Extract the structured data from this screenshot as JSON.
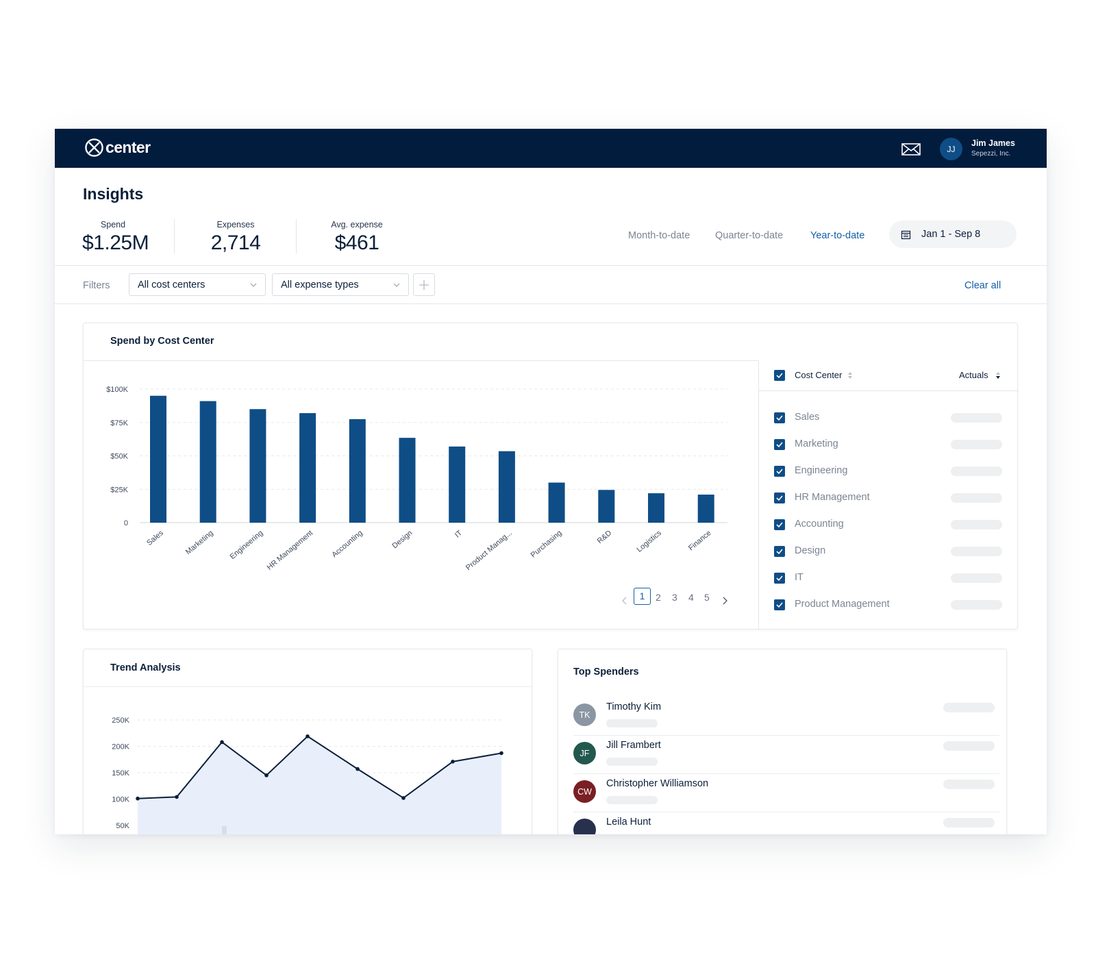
{
  "app": {
    "logo_text": "center",
    "user": {
      "initials": "JJ",
      "name": "Jim James",
      "company": "Sepezzi, Inc."
    }
  },
  "page": {
    "title": "Insights",
    "stats": [
      {
        "label": "Spend",
        "value": "$1.25M"
      },
      {
        "label": "Expenses",
        "value": "2,714"
      },
      {
        "label": "Avg. expense",
        "value": "$461"
      }
    ],
    "ranges": [
      "Month-to-date",
      "Quarter-to-date",
      "Year-to-date"
    ],
    "active_range": "Year-to-date",
    "date_range": "Jan 1 - Sep 8"
  },
  "filters": {
    "label": "Filters",
    "cost_centers": "All cost centers",
    "expense_types": "All expense types",
    "clear_label": "Clear all"
  },
  "spend_card": {
    "title": "Spend by Cost Center",
    "pagination": {
      "pages": [
        "1",
        "2",
        "3",
        "4",
        "5"
      ],
      "current": "1"
    },
    "table": {
      "header_label": "Cost Center",
      "header_actuals": "Actuals",
      "rows": [
        "Sales",
        "Marketing",
        "Engineering",
        "HR Management",
        "Accounting",
        "Design",
        "IT",
        "Product Management"
      ]
    }
  },
  "trend_card": {
    "title": "Trend Analysis"
  },
  "spenders_card": {
    "title": "Top Spenders",
    "people": [
      {
        "initials": "TK",
        "name": "Timothy Kim",
        "color": "#8a96a3"
      },
      {
        "initials": "JF",
        "name": "Jill Frambert",
        "color": "#23584f"
      },
      {
        "initials": "CW",
        "name": "Christopher Williamson",
        "color": "#7a1f24"
      },
      {
        "initials": "",
        "name": "Leila Hunt",
        "color": "#27304d"
      }
    ]
  },
  "colors": {
    "navy": "#021c3d",
    "bar": "#0f4d86",
    "accent": "#135fa6",
    "area": "#e8effa"
  },
  "icons": [
    "logo-mark-icon",
    "mail-icon",
    "calendar-icon",
    "chevron-down-icon",
    "plus-icon",
    "check-icon",
    "sort-icon",
    "chevron-left-icon",
    "chevron-right-icon"
  ],
  "chart_data": [
    {
      "type": "bar",
      "title": "Spend by Cost Center",
      "categories": [
        "Sales",
        "Marketing",
        "Engineering",
        "HR Management",
        "Accounting",
        "Design",
        "IT",
        "Product Manag...",
        "Purchasing",
        "R&D",
        "Logistics",
        "Finance"
      ],
      "values": [
        95000,
        91000,
        85000,
        82000,
        77500,
        63500,
        57000,
        53500,
        30000,
        24500,
        22000,
        21000
      ],
      "yticks": [
        "0",
        "$25K",
        "$50K",
        "$75K",
        "$100K"
      ],
      "ylim": [
        0,
        100000
      ],
      "grid": true
    },
    {
      "type": "line",
      "title": "Trend Analysis",
      "x": [
        0,
        1,
        2,
        3,
        4,
        5,
        6,
        7,
        8
      ],
      "values": [
        101000,
        104000,
        208000,
        145000,
        219000,
        157000,
        102000,
        171000,
        187000
      ],
      "yticks": [
        "250K",
        "200K",
        "150K",
        "100K",
        "50K"
      ],
      "ylim": [
        0,
        250000
      ],
      "area_fill": true,
      "grid": true
    }
  ]
}
